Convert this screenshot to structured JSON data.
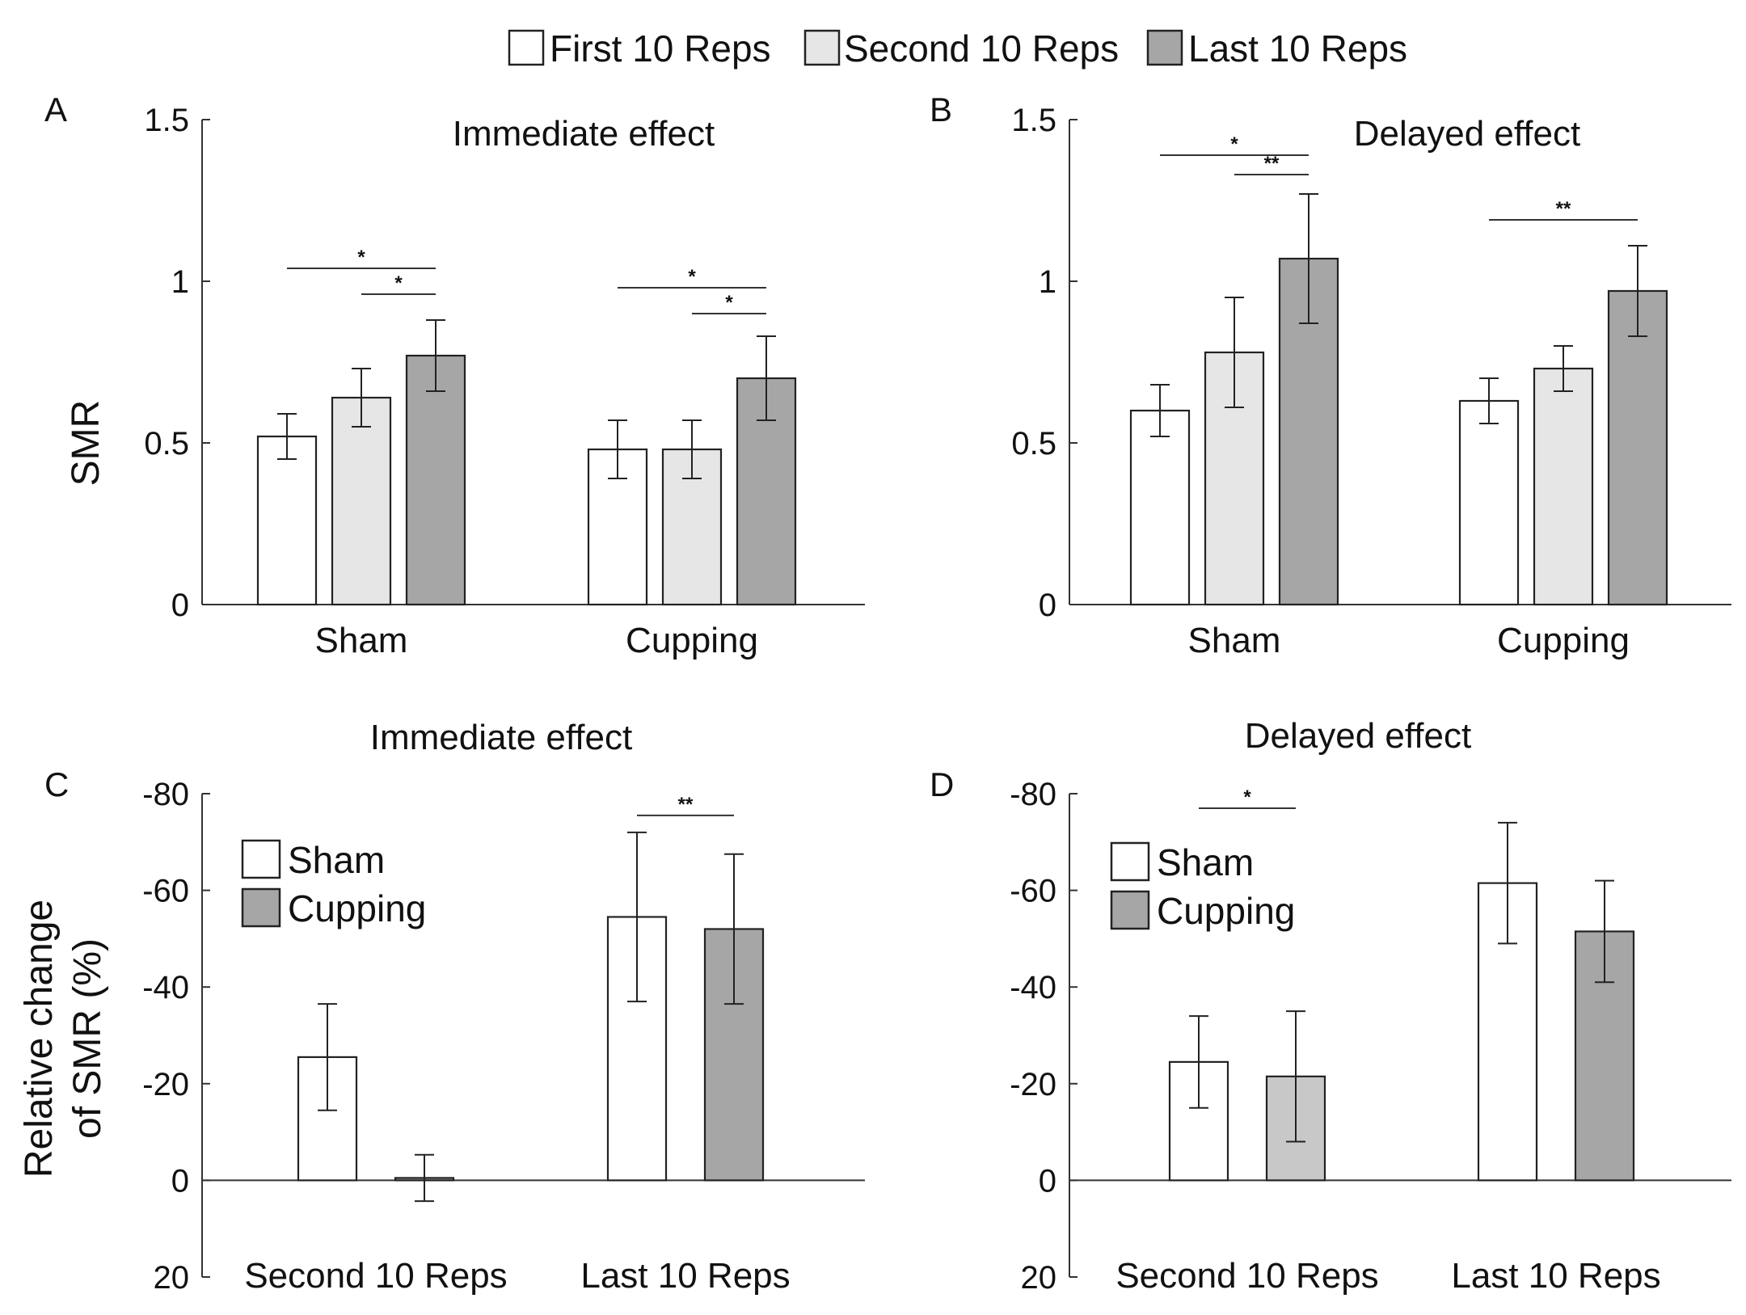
{
  "chart_data": {
    "legend": {
      "items": [
        {
          "label": "First 10 Reps",
          "color": "#ffffff"
        },
        {
          "label": "Second 10 Reps",
          "color": "#e6e6e6"
        },
        {
          "label": "Last 10 Reps",
          "color": "#a6a6a6"
        }
      ]
    },
    "shared_ylabels": {
      "top": "SMR",
      "bottom": [
        "Relative change",
        "of SMR (%)"
      ]
    },
    "panels": [
      {
        "id": "A",
        "letter": "A",
        "title": "Immediate effect",
        "type": "bar",
        "ylim": [
          0,
          1.5
        ],
        "yticks": [
          {
            "v": 0,
            "label": "0"
          },
          {
            "v": 0.5,
            "label": "0.5"
          },
          {
            "v": 1,
            "label": "1"
          },
          {
            "v": 1.5,
            "label": "1.5"
          }
        ],
        "categories": [
          "Sham",
          "Cupping"
        ],
        "series": [
          {
            "name": "First 10 Reps",
            "color": "#ffffff",
            "values": [
              0.52,
              0.48
            ],
            "errors": [
              0.07,
              0.09
            ]
          },
          {
            "name": "Second 10 Reps",
            "color": "#e6e6e6",
            "values": [
              0.64,
              0.48
            ],
            "errors": [
              0.09,
              0.09
            ]
          },
          {
            "name": "Last 10 Reps",
            "color": "#a6a6a6",
            "values": [
              0.77,
              0.7
            ],
            "errors": [
              0.11,
              0.13
            ]
          }
        ],
        "significance": [
          {
            "category": 0,
            "from": 0,
            "to": 2,
            "y": 1.04,
            "label": "*"
          },
          {
            "category": 0,
            "from": 1,
            "to": 2,
            "y": 0.96,
            "label": "*"
          },
          {
            "category": 1,
            "from": 0,
            "to": 2,
            "y": 0.98,
            "label": "*"
          },
          {
            "category": 1,
            "from": 1,
            "to": 2,
            "y": 0.9,
            "label": "*"
          }
        ]
      },
      {
        "id": "B",
        "letter": "B",
        "title": "Delayed effect",
        "type": "bar",
        "ylim": [
          0,
          1.5
        ],
        "yticks": [
          {
            "v": 0,
            "label": "0"
          },
          {
            "v": 0.5,
            "label": "0.5"
          },
          {
            "v": 1,
            "label": "1"
          },
          {
            "v": 1.5,
            "label": "1.5"
          }
        ],
        "categories": [
          "Sham",
          "Cupping"
        ],
        "series": [
          {
            "name": "First 10 Reps",
            "color": "#ffffff",
            "values": [
              0.6,
              0.63
            ],
            "errors": [
              0.08,
              0.07
            ]
          },
          {
            "name": "Second 10 Reps",
            "color": "#e6e6e6",
            "values": [
              0.78,
              0.73
            ],
            "errors": [
              0.17,
              0.07
            ]
          },
          {
            "name": "Last 10 Reps",
            "color": "#a6a6a6",
            "values": [
              1.07,
              0.97
            ],
            "errors": [
              0.2,
              0.14
            ]
          }
        ],
        "significance": [
          {
            "category": 0,
            "from": 0,
            "to": 2,
            "y": 1.39,
            "label": "*"
          },
          {
            "category": 0,
            "from": 1,
            "to": 2,
            "y": 1.33,
            "label": "**"
          },
          {
            "category": 1,
            "from": 0,
            "to": 2,
            "y": 1.19,
            "label": "**"
          }
        ]
      },
      {
        "id": "C",
        "letter": "C",
        "title": "Immediate effect",
        "type": "bar",
        "ylim": [
          20,
          -80
        ],
        "yticks": [
          {
            "v": -80,
            "label": "-80"
          },
          {
            "v": -60,
            "label": "-60"
          },
          {
            "v": -40,
            "label": "-40"
          },
          {
            "v": -20,
            "label": "-20"
          },
          {
            "v": 0,
            "label": "0"
          },
          {
            "v": 20,
            "label": "20"
          }
        ],
        "categories": [
          "Second 10 Reps",
          "Last 10 Reps"
        ],
        "series": [
          {
            "name": "Sham",
            "color": "#ffffff",
            "values": [
              -25.5,
              -54.5
            ],
            "errors": [
              11,
              17.5
            ]
          },
          {
            "name": "Cupping",
            "color": "#a6a6a6",
            "values": [
              -0.5,
              -52
            ],
            "errors": [
              4.8,
              15.5
            ]
          }
        ],
        "inline_legend": [
          "Sham",
          "Cupping"
        ],
        "significance": [
          {
            "x1": [
              0,
              1
            ],
            "x2": [
              1,
              1
            ],
            "y": -75.5,
            "label": "**"
          }
        ]
      },
      {
        "id": "D",
        "letter": "D",
        "title": "Delayed effect",
        "type": "bar",
        "ylim": [
          20,
          -80
        ],
        "yticks": [
          {
            "v": -80,
            "label": "-80"
          },
          {
            "v": -60,
            "label": "-60"
          },
          {
            "v": -40,
            "label": "-40"
          },
          {
            "v": -20,
            "label": "-20"
          },
          {
            "v": 0,
            "label": "0"
          },
          {
            "v": 20,
            "label": "20"
          }
        ],
        "categories": [
          "Second 10 Reps",
          "Last 10 Reps"
        ],
        "series": [
          {
            "name": "Sham",
            "color": "#ffffff",
            "values": [
              -24.5,
              -61.5
            ],
            "errors": [
              9.5,
              12.5
            ]
          },
          {
            "name": "Cupping",
            "color": "#c8c8c8",
            "values": [
              -21.5,
              -51.5
            ],
            "errors": [
              13.5,
              10.5
            ]
          }
        ],
        "series_colors_by_category": [
          [
            "#ffffff",
            "#c8c8c8"
          ],
          [
            "#ffffff",
            "#a6a6a6"
          ]
        ],
        "inline_legend": [
          "Sham",
          "Cupping"
        ],
        "significance": [
          {
            "x1": [
              0,
              0
            ],
            "x2": [
              1,
              0
            ],
            "y": -77,
            "label": "*"
          }
        ]
      }
    ]
  }
}
